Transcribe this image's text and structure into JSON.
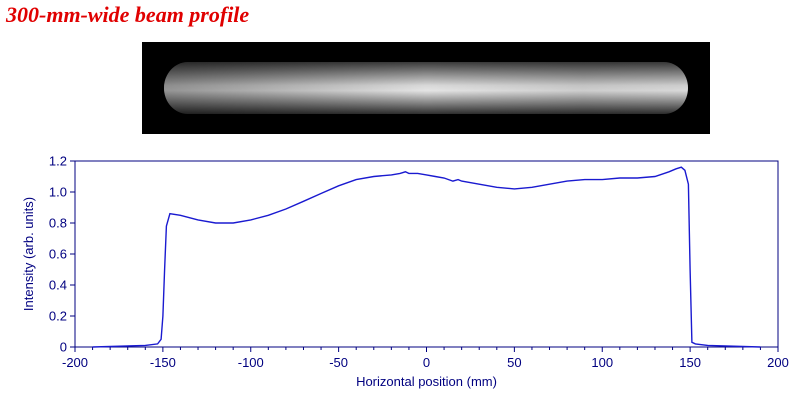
{
  "page": {
    "title": "300-mm-wide beam profile"
  },
  "chart_data": {
    "type": "line",
    "title": "",
    "xlabel": "Horizontal position (mm)",
    "ylabel": "Intensity (arb. units)",
    "xlim": [
      -200,
      200
    ],
    "ylim": [
      0,
      1.2
    ],
    "x_ticks": [
      -200,
      -150,
      -100,
      -50,
      0,
      50,
      100,
      150,
      200
    ],
    "y_ticks": [
      0,
      0.2,
      0.4,
      0.6,
      0.8,
      1.0,
      1.2
    ],
    "x_tick_labels": [
      "-200",
      "-150",
      "-100",
      "-50",
      "0",
      "50",
      "100",
      "150",
      "200"
    ],
    "y_tick_labels": [
      "0",
      "0.2",
      "0.4",
      "0.6",
      "0.8",
      "1.0",
      "1.2"
    ],
    "grid": false,
    "line_color": "#1a1ad0",
    "axis_color": "#000080",
    "series": [
      {
        "x": [
          -190,
          -160,
          -153,
          -151,
          -150,
          -149,
          -148,
          -146,
          -140,
          -130,
          -120,
          -110,
          -100,
          -90,
          -80,
          -70,
          -60,
          -50,
          -40,
          -30,
          -20,
          -15,
          -12,
          -10,
          -5,
          0,
          5,
          10,
          15,
          18,
          20,
          30,
          40,
          50,
          60,
          70,
          80,
          90,
          100,
          110,
          120,
          130,
          138,
          142,
          145,
          147,
          149,
          150,
          151,
          153,
          160,
          190
        ],
        "y": [
          0.0,
          0.01,
          0.02,
          0.05,
          0.2,
          0.5,
          0.78,
          0.86,
          0.85,
          0.82,
          0.8,
          0.8,
          0.82,
          0.85,
          0.89,
          0.94,
          0.99,
          1.04,
          1.08,
          1.1,
          1.11,
          1.12,
          1.13,
          1.12,
          1.12,
          1.11,
          1.1,
          1.09,
          1.07,
          1.08,
          1.07,
          1.05,
          1.03,
          1.02,
          1.03,
          1.05,
          1.07,
          1.08,
          1.08,
          1.09,
          1.09,
          1.1,
          1.13,
          1.15,
          1.16,
          1.14,
          1.05,
          0.5,
          0.03,
          0.02,
          0.01,
          0.0
        ]
      }
    ]
  }
}
